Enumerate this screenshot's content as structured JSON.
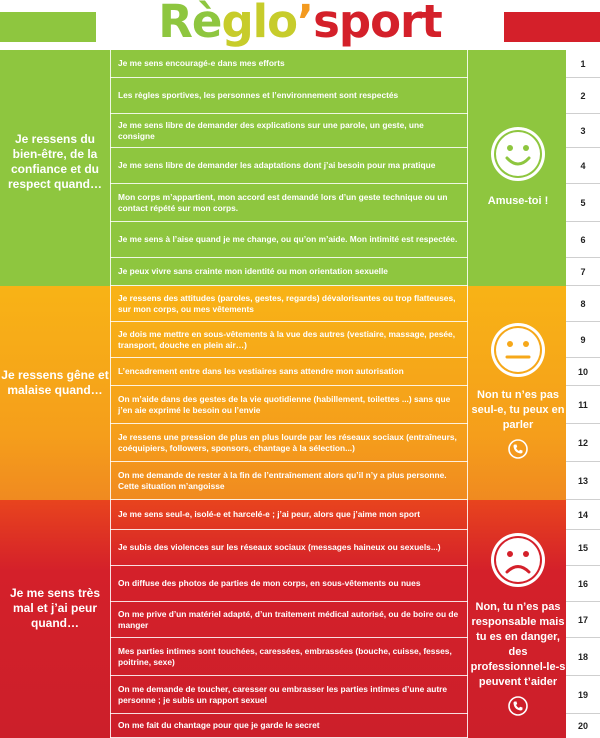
{
  "title": {
    "part1": "R",
    "part2": "è",
    "part3": "glo",
    "part4": "’",
    "part5": "sport"
  },
  "sections": [
    {
      "id": "green",
      "label": "Je ressens du bien-être, de la confiance et du respect quand…",
      "message": "Amuse-toi !",
      "mood": "happy",
      "items": [
        {
          "n": "1",
          "text": "Je me sens encouragé-e dans mes efforts"
        },
        {
          "n": "2",
          "text": "Les règles sportives, les personnes et l’environnement sont respectés"
        },
        {
          "n": "3",
          "text": "Je me sens libre de demander des explications sur une parole, un geste, une consigne"
        },
        {
          "n": "4",
          "text": "Je me sens libre de demander les adaptations dont j’ai besoin pour ma pratique"
        },
        {
          "n": "5",
          "text": "Mon corps m’appartient, mon accord est demandé lors d’un geste technique ou un contact répété sur mon corps."
        },
        {
          "n": "6",
          "text": "Je me sens à l’aise quand je me change, ou qu’on m’aide. Mon intimité est respectée."
        },
        {
          "n": "7",
          "text": "Je peux vivre sans crainte mon identité ou mon orientation sexuelle"
        }
      ]
    },
    {
      "id": "orange",
      "label": "Je ressens gêne et malaise quand…",
      "message": "Non tu n’es pas seul-e, tu peux en parler",
      "mood": "neutral",
      "items": [
        {
          "n": "8",
          "text": "Je ressens des attitudes (paroles, gestes, regards) dévalorisantes ou trop flatteuses, sur mon corps, ou mes vêtements"
        },
        {
          "n": "9",
          "text": "Je dois me mettre en sous-vêtements à la vue des autres (vestiaire, massage, pesée, transport, douche en plein air…)"
        },
        {
          "n": "10",
          "text": "L’encadrement entre dans les vestiaires sans attendre mon autorisation"
        },
        {
          "n": "11",
          "text": "On m’aide dans des gestes de la vie quotidienne (habillement, toilettes ...) sans que j’en aie exprimé le besoin ou l’envie"
        },
        {
          "n": "12",
          "text": "Je ressens une pression de plus en plus lourde par les réseaux sociaux (entraîneurs, coéquipiers, followers, sponsors, chantage à la sélection...)"
        },
        {
          "n": "13",
          "text": "On me demande de rester à la fin de l’entraînement alors qu’il n’y a plus personne. Cette situation m’angoisse"
        }
      ]
    },
    {
      "id": "red",
      "label": "Je me sens très mal et j’ai peur quand…",
      "message": "Non, tu n’es pas responsable mais tu es en danger, des professionnel-le-s peuvent t’aider",
      "mood": "sad",
      "items": [
        {
          "n": "14",
          "text": "Je me sens seul-e, isolé-e et harcelé-e ; j’ai peur, alors que j’aime mon sport"
        },
        {
          "n": "15",
          "text": "Je subis des violences sur les réseaux sociaux (messages haineux ou sexuels...)"
        },
        {
          "n": "16",
          "text": "On diffuse des photos de parties de mon corps, en sous-vêtements ou nues"
        },
        {
          "n": "17",
          "text": "On me prive d’un matériel adapté, d’un traitement médical autorisé, ou de boire ou de manger"
        },
        {
          "n": "18",
          "text": "Mes parties intimes sont touchées, caressées, embrassées (bouche, cuisse, fesses, poitrine, sexe)"
        },
        {
          "n": "19",
          "text": "On me demande de toucher, caresser ou embrasser les parties intimes d’une autre personne ; je subis un rapport sexuel"
        },
        {
          "n": "20",
          "text": "On me fait du chantage pour que je garde le secret"
        }
      ]
    }
  ],
  "icons": {
    "happy": "smiley-happy-icon",
    "neutral": "smiley-neutral-icon",
    "sad": "smiley-sad-icon",
    "phone": "phone-icon"
  },
  "colors": {
    "green": "#8ec63f",
    "orange": "#f6a81a",
    "red": "#d4202a"
  }
}
